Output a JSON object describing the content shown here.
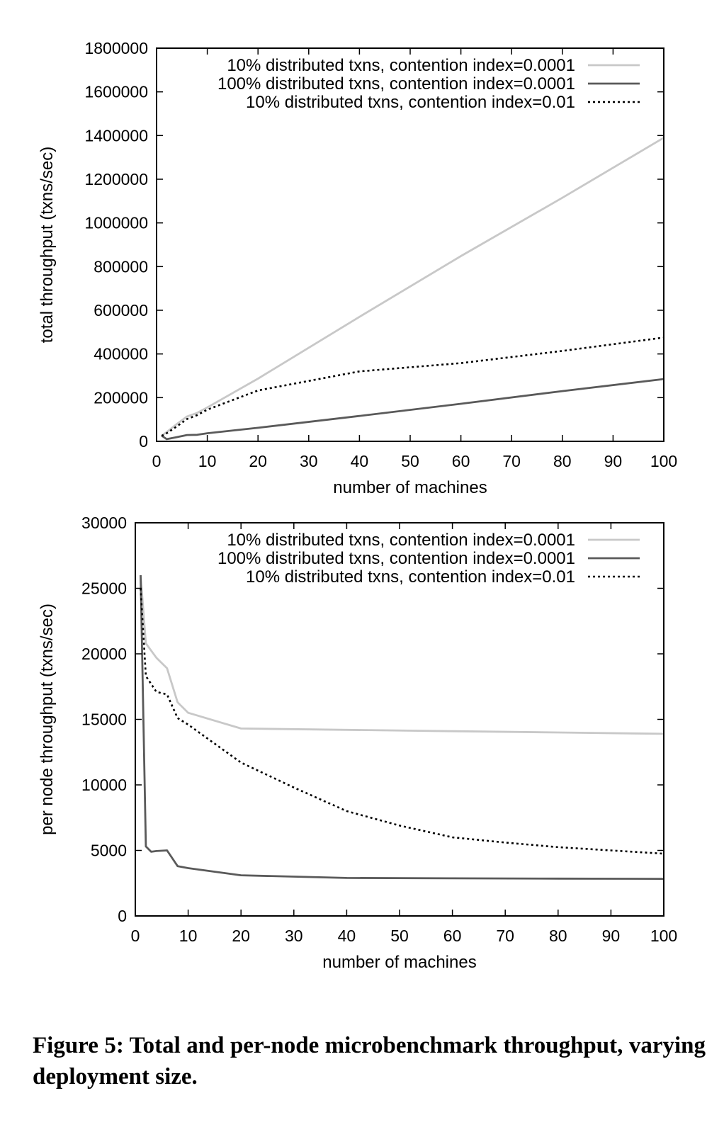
{
  "chart_data": [
    {
      "type": "line",
      "title": "",
      "xlabel": "number of machines",
      "ylabel": "total throughput (txns/sec)",
      "xlim": [
        0,
        100
      ],
      "ylim": [
        0,
        1800000
      ],
      "xticks": [
        0,
        10,
        20,
        30,
        40,
        50,
        60,
        70,
        80,
        90,
        100
      ],
      "yticks": [
        0,
        200000,
        400000,
        600000,
        800000,
        1000000,
        1200000,
        1400000,
        1600000,
        1800000
      ],
      "grid": false,
      "legend": "top-right",
      "series": [
        {
          "name": "10% distributed txns, contention index=0.0001",
          "color": "#c8c8c8",
          "style": "solid",
          "x": [
            1,
            2,
            4,
            6,
            8,
            10,
            20,
            40,
            60,
            80,
            100
          ],
          "y": [
            26000,
            42000,
            79000,
            114000,
            130000,
            155000,
            287000,
            570000,
            848000,
            1115000,
            1390000
          ]
        },
        {
          "name": "100% distributed txns, contention index=0.0001",
          "color": "#5a5a5a",
          "style": "solid",
          "x": [
            1,
            2,
            4,
            6,
            8,
            10,
            20,
            40,
            60,
            80,
            100
          ],
          "y": [
            26000,
            10000,
            19000,
            29000,
            30000,
            37000,
            62000,
            116000,
            172000,
            230000,
            285000
          ]
        },
        {
          "name": "10% distributed txns, contention index=0.01",
          "color": "#000000",
          "style": "dotted",
          "x": [
            1,
            2,
            4,
            6,
            8,
            10,
            20,
            40,
            60,
            80,
            100
          ],
          "y": [
            25000,
            37000,
            68000,
            102000,
            120000,
            145000,
            233000,
            320000,
            358000,
            414000,
            475000
          ]
        }
      ]
    },
    {
      "type": "line",
      "title": "",
      "xlabel": "number of machines",
      "ylabel": "per node throughput (txns/sec)",
      "xlim": [
        0,
        100
      ],
      "ylim": [
        0,
        30000
      ],
      "xticks": [
        0,
        10,
        20,
        30,
        40,
        50,
        60,
        70,
        80,
        90,
        100
      ],
      "yticks": [
        0,
        5000,
        10000,
        15000,
        20000,
        25000,
        30000
      ],
      "grid": false,
      "legend": "top-right",
      "series": [
        {
          "name": "10% distributed txns, contention index=0.0001",
          "color": "#c8c8c8",
          "style": "solid",
          "x": [
            1,
            2,
            4,
            6,
            8,
            10,
            20,
            40,
            60,
            80,
            100
          ],
          "y": [
            26000,
            20800,
            19700,
            18900,
            16300,
            15500,
            14300,
            14200,
            14100,
            14000,
            13900
          ]
        },
        {
          "name": "100% distributed txns, contention index=0.0001",
          "color": "#5a5a5a",
          "style": "solid",
          "x": [
            1,
            2,
            3,
            4,
            6,
            8,
            10,
            20,
            40,
            60,
            80,
            100
          ],
          "y": [
            26000,
            5300,
            4900,
            4950,
            5000,
            3800,
            3650,
            3100,
            2900,
            2870,
            2850,
            2830
          ]
        },
        {
          "name": "10% distributed txns, contention index=0.01",
          "color": "#000000",
          "style": "dotted",
          "x": [
            1,
            2,
            4,
            6,
            8,
            10,
            20,
            30,
            40,
            50,
            60,
            70,
            80,
            90,
            100
          ],
          "y": [
            25000,
            18300,
            17100,
            16900,
            15100,
            14600,
            11700,
            9800,
            8000,
            6900,
            6000,
            5600,
            5250,
            5000,
            4750
          ]
        }
      ]
    }
  ],
  "caption": "Figure 5:  Total and per-node microbenchmark throughput, varying deployment size."
}
